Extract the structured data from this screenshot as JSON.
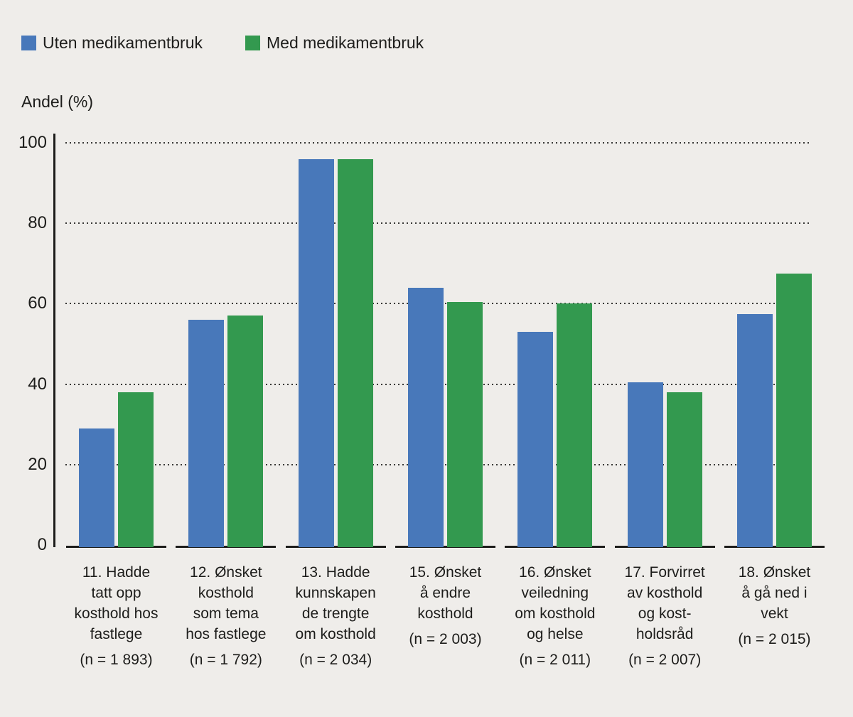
{
  "background_color": "#efedea",
  "chart_data": {
    "type": "bar",
    "title": "",
    "ylabel": "Andel (%)",
    "xlabel": "",
    "ylim": [
      0,
      100
    ],
    "yticks": [
      0,
      20,
      40,
      60,
      80,
      100
    ],
    "grid": "horizontal dotted",
    "legend_position": "top-left",
    "series": [
      {
        "name": "Uten medikamentbruk",
        "color": "#4878ba",
        "values": [
          29,
          56,
          96,
          64,
          53,
          40.5,
          57.5
        ]
      },
      {
        "name": "Med medikamentbruk",
        "color": "#33994f",
        "values": [
          38,
          57,
          96,
          60.5,
          60,
          38,
          67.5
        ]
      }
    ],
    "categories": [
      {
        "lines": [
          "11. Hadde",
          "tatt opp",
          "kosthold hos",
          "fastlege"
        ],
        "n": "(n = 1 893)"
      },
      {
        "lines": [
          "12. Ønsket",
          "kosthold",
          "som tema",
          "hos fastlege"
        ],
        "n": "(n = 1 792)"
      },
      {
        "lines": [
          "13. Hadde",
          "kunnskapen",
          "de trengte",
          "om kosthold"
        ],
        "n": "(n = 2 034)"
      },
      {
        "lines": [
          "15. Ønsket",
          "å endre",
          "kosthold"
        ],
        "n": "(n = 2 003)"
      },
      {
        "lines": [
          "16. Ønsket",
          "veiledning",
          "om kosthold",
          "og helse"
        ],
        "n": "(n = 2 011)"
      },
      {
        "lines": [
          "17. Forvirret",
          "av kosthold",
          "og kost-",
          "holdsråd"
        ],
        "n": "(n = 2 007)"
      },
      {
        "lines": [
          "18. Ønsket",
          "å gå ned i",
          "vekt"
        ],
        "n": "(n = 2 015)"
      }
    ]
  }
}
